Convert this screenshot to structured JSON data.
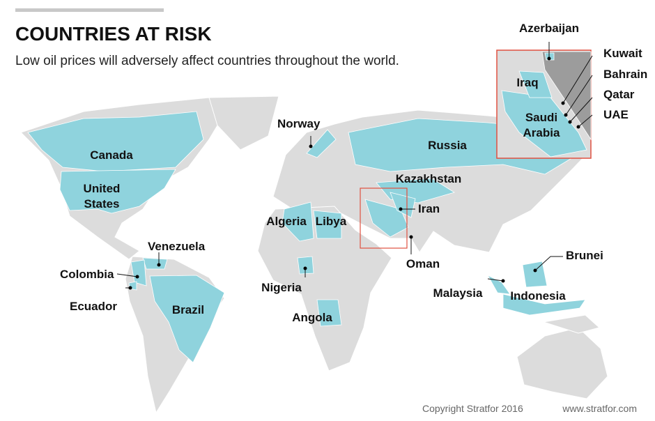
{
  "header": {
    "title": "COUNTRIES AT RISK",
    "subtitle": "Low oil prices will adversely affect countries throughout the world."
  },
  "labels": [
    {
      "lines": [
        "Canada"
      ]
    },
    {
      "lines": [
        "United",
        "States"
      ]
    },
    {
      "lines": [
        "Venezuela"
      ]
    },
    {
      "lines": [
        "Colombia"
      ]
    },
    {
      "lines": [
        "Ecuador"
      ]
    },
    {
      "lines": [
        "Brazil"
      ]
    },
    {
      "lines": [
        "Norway"
      ]
    },
    {
      "lines": [
        "Russia"
      ]
    },
    {
      "lines": [
        "Kazakhstan"
      ]
    },
    {
      "lines": [
        "Algeria"
      ]
    },
    {
      "lines": [
        "Libya"
      ]
    },
    {
      "lines": [
        "Iran"
      ]
    },
    {
      "lines": [
        "Oman"
      ]
    },
    {
      "lines": [
        "Nigeria"
      ]
    },
    {
      "lines": [
        "Angola"
      ]
    },
    {
      "lines": [
        "Malaysia"
      ]
    },
    {
      "lines": [
        "Indonesia"
      ]
    },
    {
      "lines": [
        "Brunei"
      ]
    }
  ],
  "inset_labels": [
    {
      "lines": [
        "Azerbaijan"
      ]
    },
    {
      "lines": [
        "Kuwait"
      ]
    },
    {
      "lines": [
        "Bahrain"
      ]
    },
    {
      "lines": [
        "Qatar"
      ]
    },
    {
      "lines": [
        "UAE"
      ]
    },
    {
      "lines": [
        "Iraq"
      ]
    },
    {
      "lines": [
        "Saudi",
        "Arabia"
      ]
    }
  ],
  "footer": {
    "copyright": "Copyright Stratfor 2016",
    "url": "www.stratfor.com"
  }
}
